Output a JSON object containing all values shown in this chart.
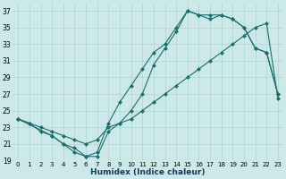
{
  "xlabel": "Humidex (Indice chaleur)",
  "bg_color": "#cce8e8",
  "line_color": "#1a6e6e",
  "grid_color": "#aad4d4",
  "marker": "D",
  "marker_size": 2.5,
  "xlim": [
    -0.5,
    23.5
  ],
  "ylim": [
    19,
    38
  ],
  "xticks": [
    0,
    1,
    2,
    3,
    4,
    5,
    6,
    7,
    8,
    9,
    10,
    11,
    12,
    13,
    14,
    15,
    16,
    17,
    18,
    19,
    20,
    21,
    22,
    23
  ],
  "yticks": [
    19,
    21,
    23,
    25,
    27,
    29,
    31,
    33,
    35,
    37
  ],
  "line1_x": [
    0,
    1,
    2,
    3,
    4,
    5,
    6,
    7,
    8,
    9,
    10,
    11,
    12,
    13,
    14,
    15,
    16,
    17,
    18,
    19,
    20,
    21,
    22,
    23
  ],
  "line1_y": [
    24,
    23.5,
    22.5,
    22,
    21,
    20.5,
    19.5,
    19.5,
    22.5,
    23.5,
    25,
    27,
    30.5,
    32.5,
    34.5,
    37,
    36.5,
    36,
    36.5,
    36,
    35,
    32.5,
    32,
    27
  ],
  "line2_x": [
    0,
    1,
    2,
    3,
    4,
    5,
    6,
    7,
    8,
    9,
    10,
    11,
    12,
    13,
    14,
    15,
    16,
    17,
    18,
    19,
    20,
    21,
    22,
    23
  ],
  "line2_y": [
    24,
    23.5,
    23,
    22.5,
    22,
    21.5,
    21,
    21.5,
    23,
    23.5,
    24,
    25,
    26,
    27,
    28,
    29,
    30,
    31,
    32,
    33,
    34,
    35,
    35.5,
    26.5
  ],
  "line3_x": [
    0,
    3,
    4,
    5,
    6,
    7,
    8,
    9,
    10,
    11,
    12,
    13,
    14,
    15,
    16,
    17,
    18,
    19,
    20,
    21,
    22,
    23
  ],
  "line3_y": [
    24,
    22,
    21,
    20,
    19.5,
    20,
    23.5,
    26,
    28,
    30,
    32,
    33,
    35,
    37,
    36.5,
    36.5,
    36.5,
    36,
    35,
    32.5,
    32,
    27
  ]
}
